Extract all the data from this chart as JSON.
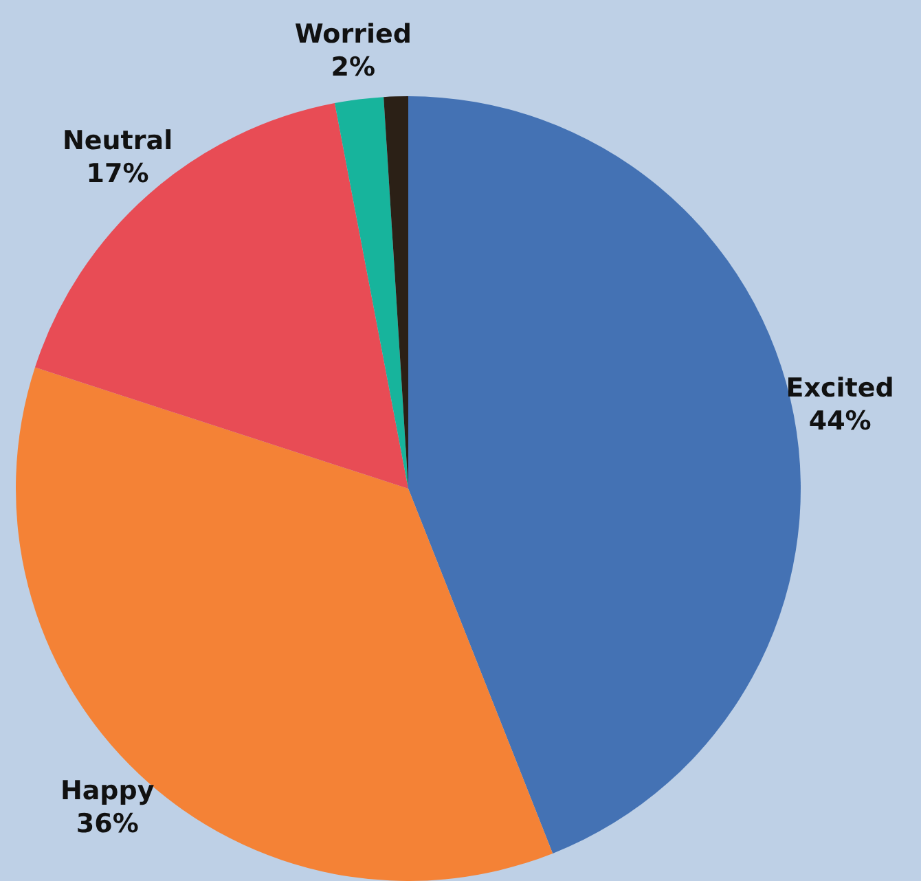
{
  "chart_data": {
    "type": "pie",
    "categories": [
      "Excited",
      "Happy",
      "Neutral",
      "Worried",
      null
    ],
    "values": [
      44,
      36,
      17,
      2,
      1
    ],
    "colors": [
      "#4472b4",
      "#f48236",
      "#e84c55",
      "#17b49c",
      "#2b2016"
    ],
    "value_labels": [
      "44%",
      "36%",
      "17%",
      "2%",
      null
    ],
    "legend": false
  }
}
